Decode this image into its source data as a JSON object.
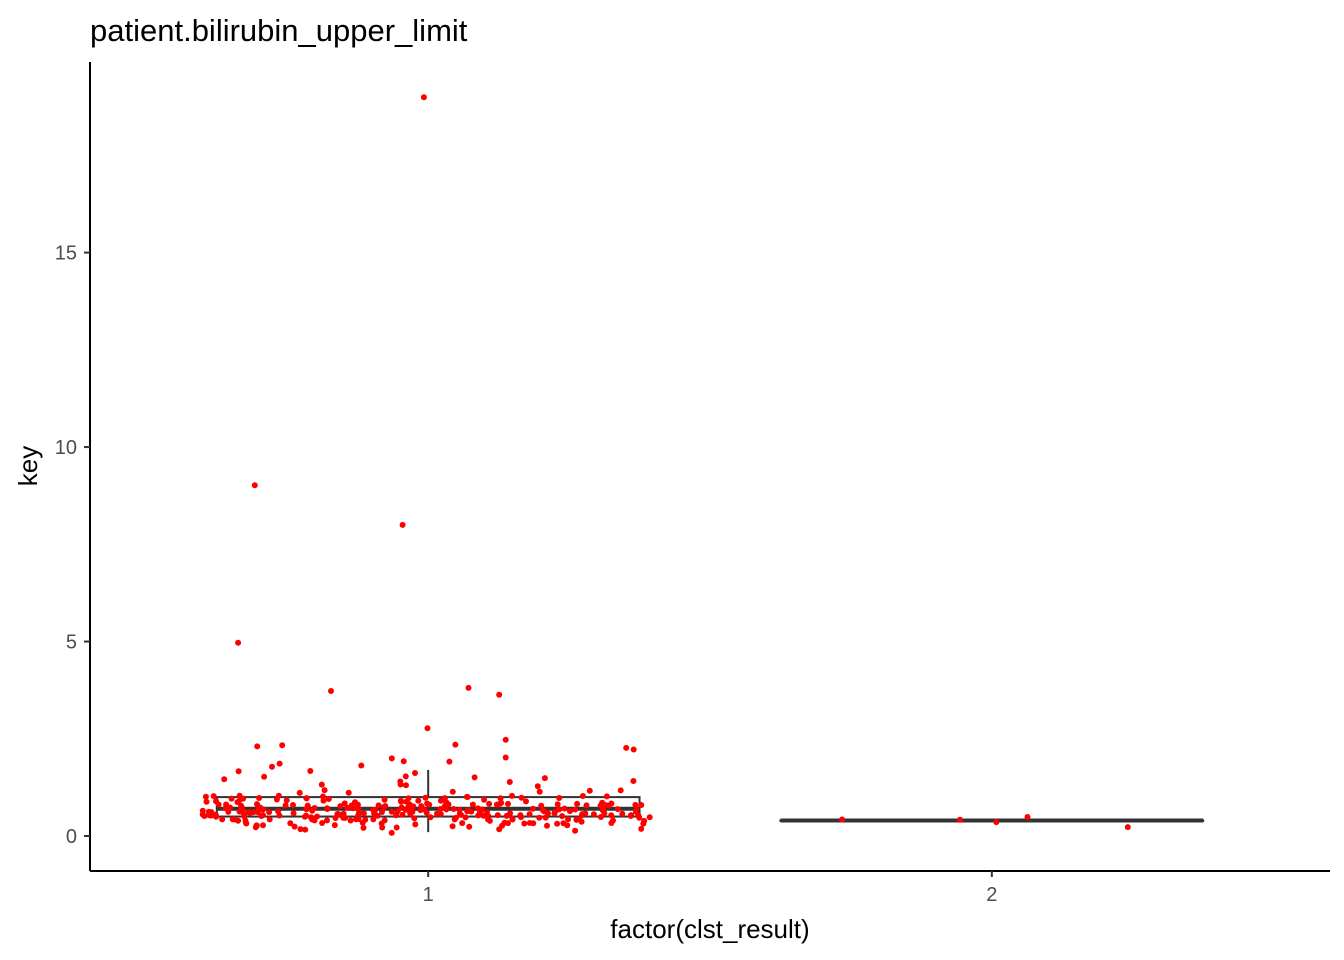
{
  "chart_data": {
    "type": "box",
    "title": "patient.bilirubin_upper_limit",
    "xlabel": "factor(clst_result)",
    "ylabel": "key",
    "categories": [
      "1",
      "2"
    ],
    "ylim": [
      -0.9,
      19.9
    ],
    "yticks": [
      0,
      5,
      10,
      15
    ],
    "grid": false,
    "legend": "none",
    "colors": {
      "points": "#ff0000",
      "box": "#333333",
      "axis": "#000000"
    },
    "boxes": [
      {
        "category": "1",
        "q1": 0.5,
        "median": 0.7,
        "q3": 1.0,
        "whisker_low": 0.1,
        "whisker_high": 1.7
      },
      {
        "category": "2",
        "q1": 0.4,
        "median": 0.4,
        "q3": 0.4,
        "whisker_low": 0.4,
        "whisker_high": 0.4
      }
    ],
    "points": {
      "1": [
        19.0,
        9.0,
        8.0,
        5.0,
        3.8,
        3.75,
        3.6,
        2.75,
        2.45,
        2.35,
        2.3,
        2.3,
        2.3,
        2.2,
        2.0,
        2.0,
        1.9,
        1.9,
        1.9,
        1.8,
        1.8,
        1.7,
        1.7,
        1.6,
        1.5,
        1.5,
        1.5,
        1.5,
        1.45,
        1.4,
        1.4,
        1.4,
        1.35,
        1.3,
        1.3,
        1.25,
        1.2,
        1.2,
        1.2,
        1.15,
        1.1,
        1.1,
        1.1,
        1.05,
        1.05,
        1.0,
        1.0,
        1.0,
        1.0,
        1.0,
        1.0,
        1.0,
        1.0,
        1.0,
        1.0,
        1.0,
        1.0,
        1.0,
        1.0,
        1.0,
        0.95,
        0.95,
        0.95,
        0.95,
        0.95,
        0.9,
        0.9,
        0.9,
        0.9,
        0.9,
        0.9,
        0.9,
        0.9,
        0.9,
        0.9,
        0.9,
        0.9,
        0.9,
        0.9,
        0.9,
        0.9,
        0.85,
        0.85,
        0.85,
        0.85,
        0.85,
        0.85,
        0.85,
        0.85,
        0.85,
        0.85,
        0.8,
        0.8,
        0.8,
        0.8,
        0.8,
        0.8,
        0.8,
        0.8,
        0.8,
        0.8,
        0.8,
        0.8,
        0.8,
        0.8,
        0.8,
        0.8,
        0.8,
        0.8,
        0.8,
        0.8,
        0.75,
        0.75,
        0.75,
        0.75,
        0.75,
        0.75,
        0.75,
        0.75,
        0.75,
        0.75,
        0.75,
        0.75,
        0.7,
        0.7,
        0.7,
        0.7,
        0.7,
        0.7,
        0.7,
        0.7,
        0.7,
        0.7,
        0.7,
        0.7,
        0.7,
        0.7,
        0.7,
        0.7,
        0.7,
        0.7,
        0.7,
        0.7,
        0.7,
        0.7,
        0.7,
        0.7,
        0.7,
        0.7,
        0.7,
        0.7,
        0.7,
        0.7,
        0.65,
        0.65,
        0.65,
        0.65,
        0.65,
        0.65,
        0.65,
        0.65,
        0.65,
        0.65,
        0.65,
        0.65,
        0.65,
        0.65,
        0.65,
        0.6,
        0.6,
        0.6,
        0.6,
        0.6,
        0.6,
        0.6,
        0.6,
        0.6,
        0.6,
        0.6,
        0.6,
        0.6,
        0.6,
        0.6,
        0.6,
        0.6,
        0.6,
        0.6,
        0.6,
        0.6,
        0.6,
        0.6,
        0.6,
        0.6,
        0.6,
        0.6,
        0.6,
        0.6,
        0.6,
        0.6,
        0.6,
        0.6,
        0.6,
        0.6,
        0.55,
        0.55,
        0.55,
        0.55,
        0.55,
        0.55,
        0.55,
        0.55,
        0.55,
        0.55,
        0.55,
        0.55,
        0.55,
        0.55,
        0.55,
        0.55,
        0.55,
        0.55,
        0.55,
        0.55,
        0.5,
        0.5,
        0.5,
        0.5,
        0.5,
        0.5,
        0.5,
        0.5,
        0.5,
        0.5,
        0.5,
        0.5,
        0.5,
        0.5,
        0.5,
        0.5,
        0.5,
        0.5,
        0.5,
        0.5,
        0.5,
        0.5,
        0.5,
        0.5,
        0.5,
        0.5,
        0.5,
        0.5,
        0.5,
        0.5,
        0.45,
        0.45,
        0.45,
        0.45,
        0.45,
        0.45,
        0.45,
        0.45,
        0.45,
        0.45,
        0.45,
        0.45,
        0.4,
        0.4,
        0.4,
        0.4,
        0.4,
        0.4,
        0.4,
        0.4,
        0.4,
        0.4,
        0.4,
        0.4,
        0.4,
        0.4,
        0.4,
        0.4,
        0.4,
        0.4,
        0.35,
        0.35,
        0.35,
        0.35,
        0.35,
        0.35,
        0.35,
        0.35,
        0.35,
        0.35,
        0.3,
        0.3,
        0.3,
        0.3,
        0.3,
        0.3,
        0.3,
        0.3,
        0.3,
        0.3,
        0.3,
        0.3,
        0.25,
        0.25,
        0.25,
        0.25,
        0.25,
        0.25,
        0.2,
        0.2,
        0.2,
        0.2,
        0.2,
        0.2,
        0.15,
        0.15,
        0.1,
        0.05
      ],
      "2": [
        0.5,
        0.45,
        0.4,
        0.35,
        0.25
      ]
    }
  }
}
